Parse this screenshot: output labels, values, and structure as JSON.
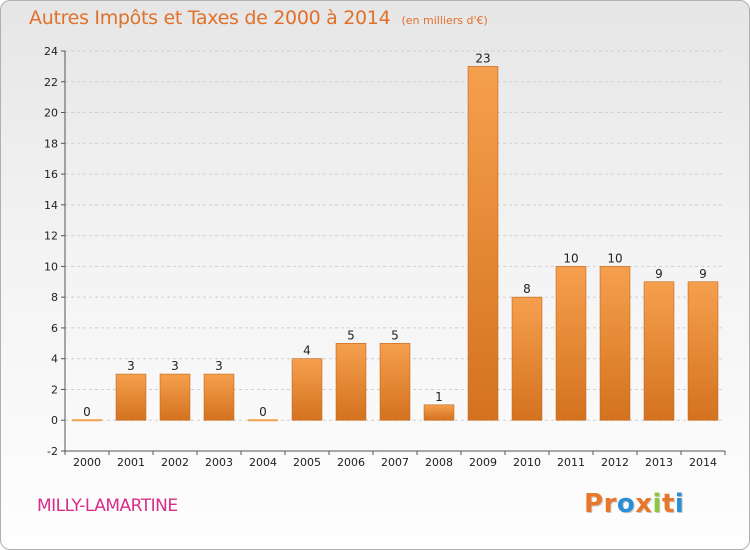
{
  "title": "Autres Impôts et Taxes de 2000 à 2014",
  "subtitle": "(en milliers d'€)",
  "commune": "MILLY-LAMARTINE",
  "logo": {
    "text": "Proxiti",
    "letter_colors": [
      "#e8762b",
      "#e8762b",
      "#2b8fd6",
      "#e8762b",
      "#8cc63f",
      "#e8762b",
      "#2b8fd6"
    ]
  },
  "colors": {
    "bar_light": "#f5a04e",
    "bar_dark": "#d4721f",
    "bar_edge": "#c0651a",
    "axis": "#555555",
    "grid": "#cfcfcf",
    "text": "#222222"
  },
  "chart_data": {
    "type": "bar",
    "title": "Autres Impôts et Taxes de 2000 à 2014",
    "subtitle": "(en milliers d'€)",
    "categories": [
      "2000",
      "2001",
      "2002",
      "2003",
      "2004",
      "2005",
      "2006",
      "2007",
      "2008",
      "2009",
      "2010",
      "2011",
      "2012",
      "2013",
      "2014"
    ],
    "values": [
      0,
      3,
      3,
      3,
      0,
      4,
      5,
      5,
      1,
      23,
      8,
      10,
      10,
      9,
      9
    ],
    "value_labels": [
      "0",
      "3",
      "3",
      "3",
      "0",
      "4",
      "5",
      "5",
      "1",
      "23",
      "8",
      "10",
      "10",
      "9",
      "9"
    ],
    "ylim": [
      -2,
      24
    ],
    "yticks": [
      "-2",
      "0",
      "2",
      "4",
      "6",
      "8",
      "10",
      "12",
      "14",
      "16",
      "18",
      "20",
      "22",
      "24"
    ],
    "grid": "horizontal-dashed",
    "xlabel": "",
    "ylabel": ""
  }
}
